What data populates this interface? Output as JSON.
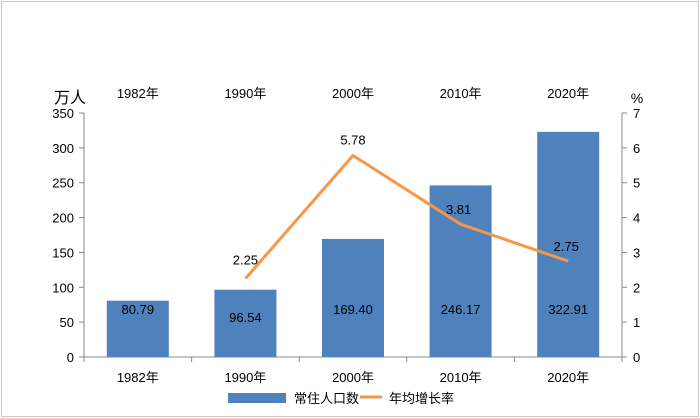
{
  "chart_data": {
    "type": "bar",
    "categories": [
      "1982年",
      "1990年",
      "2000年",
      "2010年",
      "2020年"
    ],
    "series": [
      {
        "name": "常住人口数",
        "type": "bar",
        "axis": "left",
        "color": "#4f81bd",
        "values": [
          80.79,
          96.54,
          169.4,
          246.17,
          322.91
        ],
        "labels": [
          "80.79",
          "96.54",
          "169.40",
          "246.17",
          "322.91"
        ]
      },
      {
        "name": "年均增长率",
        "type": "line",
        "axis": "right",
        "color": "#f79646",
        "values": [
          null,
          2.25,
          5.78,
          3.81,
          2.75
        ],
        "labels": [
          "",
          "2.25",
          "5.78",
          "3.81",
          "2.75"
        ]
      }
    ],
    "y_left": {
      "unit": "万人",
      "lim": [
        0,
        350
      ],
      "ticks": [
        0,
        50,
        100,
        150,
        200,
        250,
        300,
        350
      ]
    },
    "y_right": {
      "unit": "%",
      "lim": [
        0,
        7
      ],
      "ticks": [
        0,
        1,
        2,
        3,
        4,
        5,
        6,
        7
      ]
    },
    "grid": false,
    "legend": "bottom"
  }
}
